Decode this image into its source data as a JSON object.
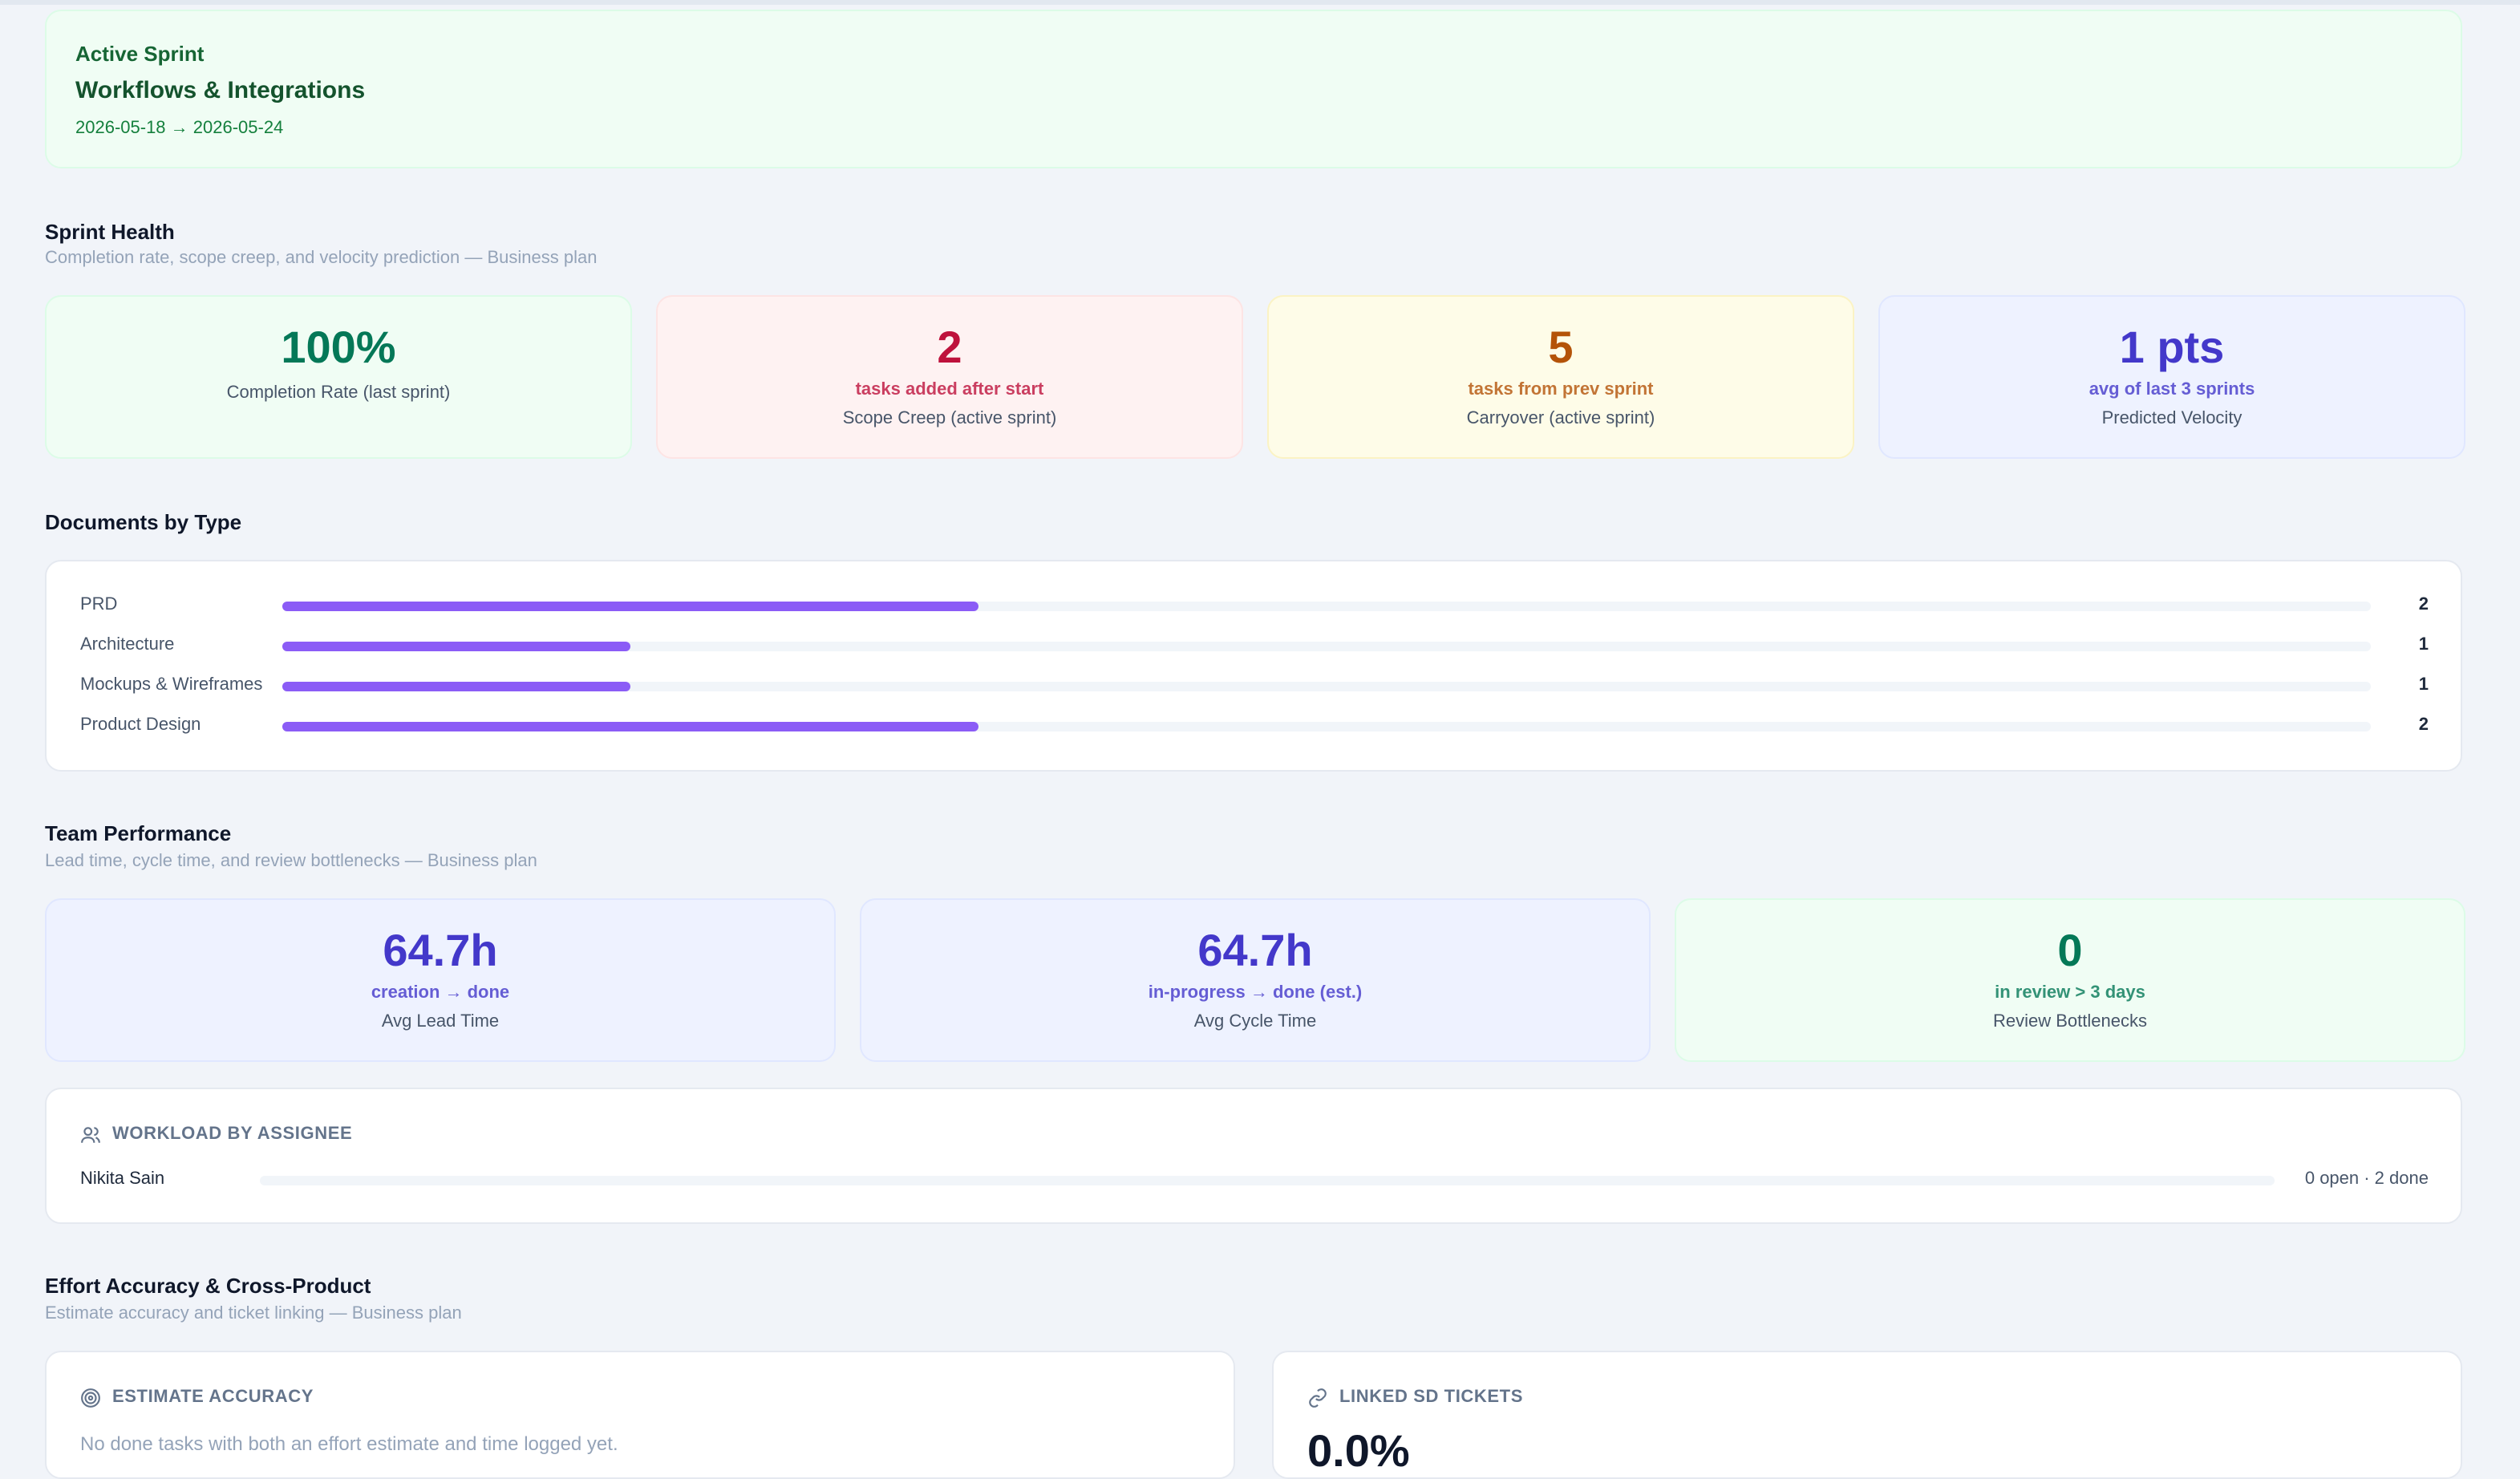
{
  "sprint": {
    "label": "Active Sprint",
    "name": "Workflows & Integrations",
    "dates": "2026-05-18 → 2026-05-24"
  },
  "sprint_health": {
    "title": "Sprint Health",
    "subtitle": "Completion rate, scope creep, and velocity prediction — Business plan",
    "cards": [
      {
        "value": "100%",
        "label": "Completion Rate (last sprint)"
      },
      {
        "value": "2",
        "caption": "tasks added after start",
        "label": "Scope Creep (active sprint)"
      },
      {
        "value": "5",
        "caption": "tasks from prev sprint",
        "label": "Carryover (active sprint)"
      },
      {
        "value": "1 pts",
        "caption": "avg of last 3 sprints",
        "label": "Predicted Velocity"
      }
    ]
  },
  "documents": {
    "title": "Documents by Type",
    "rows": [
      {
        "label": "PRD",
        "count": 2
      },
      {
        "label": "Architecture",
        "count": 1
      },
      {
        "label": "Mockups & Wireframes",
        "count": 1
      },
      {
        "label": "Product Design",
        "count": 2
      }
    ]
  },
  "team": {
    "title": "Team Performance",
    "subtitle": "Lead time, cycle time, and review bottlenecks — Business plan",
    "cards": [
      {
        "value": "64.7h",
        "caption": "creation → done",
        "label": "Avg Lead Time"
      },
      {
        "value": "64.7h",
        "caption": "in-progress → done (est.)",
        "label": "Avg Cycle Time"
      },
      {
        "value": "0",
        "caption": "in review > 3 days",
        "label": "Review Bottlenecks"
      }
    ]
  },
  "workload": {
    "title": "WORKLOAD BY ASSIGNEE",
    "rows": [
      {
        "name": "Nikita Sain",
        "summary": "0 open · 2 done"
      }
    ]
  },
  "effort": {
    "title": "Effort Accuracy & Cross-Product",
    "subtitle": "Estimate accuracy and ticket linking — Business plan",
    "estimate": {
      "title": "ESTIMATE ACCURACY",
      "message": "No done tasks with both an effort estimate and time logged yet."
    },
    "linked": {
      "title": "LINKED SD TICKETS",
      "value": "0.0%"
    }
  }
}
